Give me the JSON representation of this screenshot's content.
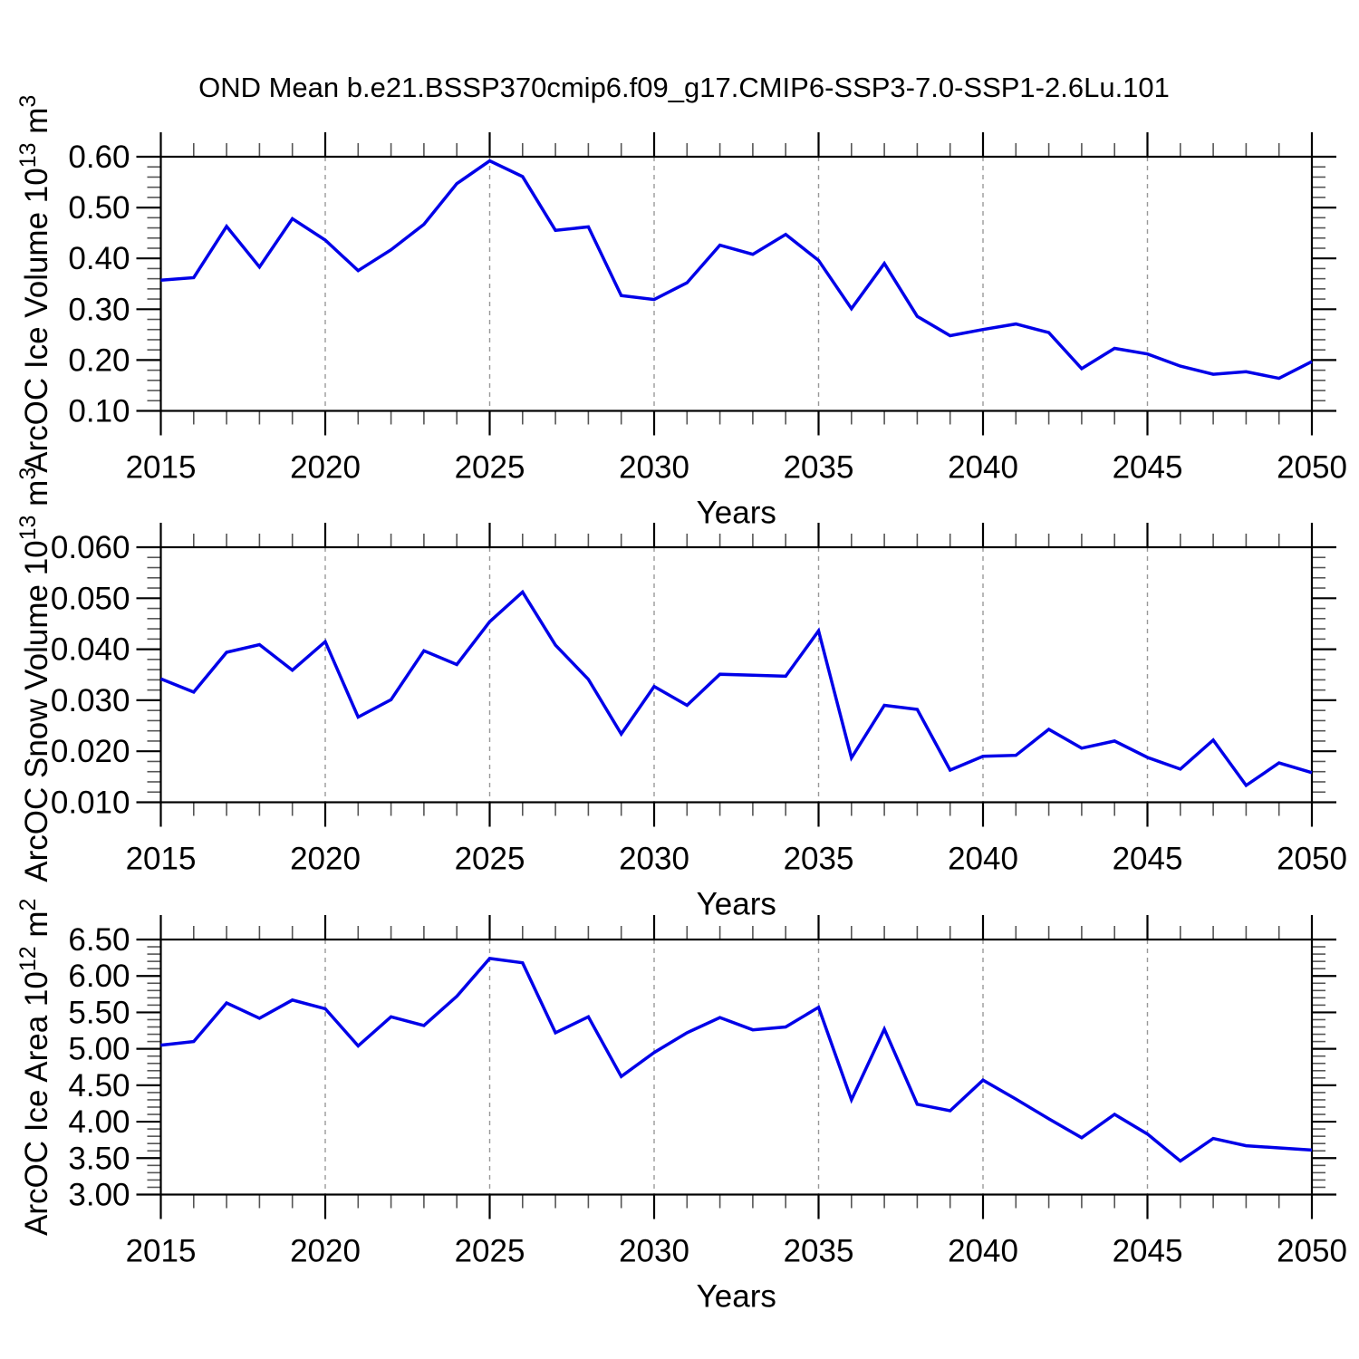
{
  "page": {
    "title": "OND Mean b.e21.BSSP370cmip6.f09_g17.CMIP6-SSP3-7.0-SSP1-2.6Lu.101"
  },
  "style": {
    "line_color": "#0000e8",
    "axis_color": "#000000",
    "minor_tick_color": "#555555",
    "grid_color": "#999999",
    "background": "#ffffff"
  },
  "chart_data": [
    {
      "type": "line",
      "name": "ice-volume",
      "ylabel_parts": [
        {
          "t": "ArcOC Ice Volume 10"
        },
        {
          "t": "13",
          "sup": true
        },
        {
          "t": " m"
        },
        {
          "t": "3",
          "sup": true
        }
      ],
      "ylabel_text": "ArcOC Ice Volume 10^13 m^3",
      "xlabel": "Years",
      "x": [
        2015,
        2016,
        2017,
        2018,
        2019,
        2020,
        2021,
        2022,
        2023,
        2024,
        2025,
        2026,
        2027,
        2028,
        2029,
        2030,
        2031,
        2032,
        2033,
        2034,
        2035,
        2036,
        2037,
        2038,
        2039,
        2040,
        2041,
        2042,
        2043,
        2044,
        2045,
        2046,
        2047,
        2048,
        2049,
        2050
      ],
      "values": [
        0.357,
        0.362,
        0.463,
        0.383,
        0.478,
        0.436,
        0.376,
        0.417,
        0.467,
        0.547,
        0.592,
        0.561,
        0.455,
        0.462,
        0.327,
        0.319,
        0.352,
        0.426,
        0.408,
        0.447,
        0.396,
        0.301,
        0.39,
        0.286,
        0.248,
        0.26,
        0.271,
        0.254,
        0.183,
        0.223,
        0.212,
        0.188,
        0.172,
        0.177,
        0.164,
        0.197
      ],
      "ylim": [
        0.1,
        0.6
      ],
      "yticks": [
        0.1,
        0.2,
        0.3,
        0.4,
        0.5,
        0.6
      ],
      "ytick_labels": [
        "0.10",
        "0.20",
        "0.30",
        "0.40",
        "0.50",
        "0.60"
      ],
      "yminor_step": 0.02,
      "xlim": [
        2015,
        2050
      ],
      "xticks": [
        2015,
        2020,
        2025,
        2030,
        2035,
        2040,
        2045,
        2050
      ],
      "xtick_labels": [
        "2015",
        "2020",
        "2025",
        "2030",
        "2035",
        "2040",
        "2045",
        "2050"
      ],
      "xminor_step": 1,
      "grid_years": [
        2020,
        2025,
        2030,
        2035,
        2040,
        2045
      ],
      "grid_style": "vertical-dashed",
      "legend": null
    },
    {
      "type": "line",
      "name": "snow-volume",
      "ylabel_parts": [
        {
          "t": "ArcOC Snow Volume 10"
        },
        {
          "t": "13",
          "sup": true
        },
        {
          "t": " m"
        },
        {
          "t": "3",
          "sup": true
        }
      ],
      "ylabel_text": "ArcOC Snow Volume 10^13 m^3",
      "xlabel": "Years",
      "x": [
        2015,
        2016,
        2017,
        2018,
        2019,
        2020,
        2021,
        2022,
        2023,
        2024,
        2025,
        2026,
        2027,
        2028,
        2029,
        2030,
        2031,
        2032,
        2033,
        2034,
        2035,
        2036,
        2037,
        2038,
        2039,
        2040,
        2041,
        2042,
        2043,
        2044,
        2045,
        2046,
        2047,
        2048,
        2049,
        2050
      ],
      "values": [
        0.0342,
        0.0316,
        0.0394,
        0.0409,
        0.0359,
        0.0415,
        0.0267,
        0.0301,
        0.0397,
        0.037,
        0.0454,
        0.0512,
        0.0408,
        0.0341,
        0.0234,
        0.0327,
        0.029,
        0.0351,
        0.0349,
        0.0347,
        0.0436,
        0.0187,
        0.029,
        0.0282,
        0.0163,
        0.019,
        0.0192,
        0.0243,
        0.0206,
        0.022,
        0.0188,
        0.0165,
        0.0222,
        0.0133,
        0.0177,
        0.0158
      ],
      "ylim": [
        0.01,
        0.06
      ],
      "yticks": [
        0.01,
        0.02,
        0.03,
        0.04,
        0.05,
        0.06
      ],
      "ytick_labels": [
        "0.010",
        "0.020",
        "0.030",
        "0.040",
        "0.050",
        "0.060"
      ],
      "yminor_step": 0.002,
      "xlim": [
        2015,
        2050
      ],
      "xticks": [
        2015,
        2020,
        2025,
        2030,
        2035,
        2040,
        2045,
        2050
      ],
      "xtick_labels": [
        "2015",
        "2020",
        "2025",
        "2030",
        "2035",
        "2040",
        "2045",
        "2050"
      ],
      "xminor_step": 1,
      "grid_years": [
        2020,
        2025,
        2030,
        2035,
        2040,
        2045
      ],
      "grid_style": "vertical-dashed",
      "legend": null
    },
    {
      "type": "line",
      "name": "ice-area",
      "ylabel_parts": [
        {
          "t": "ArcOC Ice Area 10"
        },
        {
          "t": "12",
          "sup": true
        },
        {
          "t": " m"
        },
        {
          "t": "2",
          "sup": true
        }
      ],
      "ylabel_text": "ArcOC Ice Area 10^12 m^2",
      "xlabel": "Years",
      "x": [
        2015,
        2016,
        2017,
        2018,
        2019,
        2020,
        2021,
        2022,
        2023,
        2024,
        2025,
        2026,
        2027,
        2028,
        2029,
        2030,
        2031,
        2032,
        2033,
        2034,
        2035,
        2036,
        2037,
        2038,
        2039,
        2040,
        2041,
        2042,
        2043,
        2044,
        2045,
        2046,
        2047,
        2048,
        2049,
        2050
      ],
      "values": [
        5.05,
        5.1,
        5.63,
        5.42,
        5.67,
        5.55,
        5.04,
        5.44,
        5.32,
        5.72,
        6.24,
        6.18,
        5.22,
        5.44,
        4.62,
        4.95,
        5.22,
        5.43,
        5.26,
        5.3,
        5.57,
        4.3,
        5.27,
        4.24,
        4.15,
        4.57,
        4.31,
        4.04,
        3.78,
        4.1,
        3.83,
        3.46,
        3.77,
        3.67,
        3.64,
        3.61
      ],
      "ylim": [
        3.0,
        6.5
      ],
      "yticks": [
        3.0,
        3.5,
        4.0,
        4.5,
        5.0,
        5.5,
        6.0,
        6.5
      ],
      "ytick_labels": [
        "3.00",
        "3.50",
        "4.00",
        "4.50",
        "5.00",
        "5.50",
        "6.00",
        "6.50"
      ],
      "yminor_step": 0.1,
      "xlim": [
        2015,
        2050
      ],
      "xticks": [
        2015,
        2020,
        2025,
        2030,
        2035,
        2040,
        2045,
        2050
      ],
      "xtick_labels": [
        "2015",
        "2020",
        "2025",
        "2030",
        "2035",
        "2040",
        "2045",
        "2050"
      ],
      "xminor_step": 1,
      "grid_years": [
        2020,
        2025,
        2030,
        2035,
        2040,
        2045
      ],
      "grid_style": "vertical-dashed",
      "legend": null
    }
  ]
}
